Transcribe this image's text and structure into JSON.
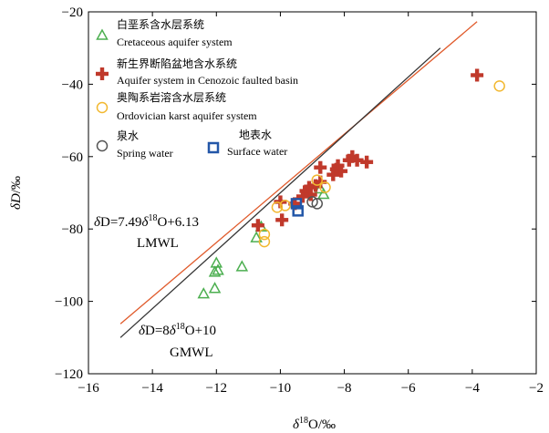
{
  "chart_data": {
    "type": "scatter",
    "xlabel": "δ18O/‰",
    "ylabel": "δD/‰",
    "xlim": [
      -16,
      -2
    ],
    "ylim": [
      -120,
      -20
    ],
    "xticks": [
      -16,
      -14,
      -12,
      -10,
      -8,
      -6,
      -4,
      -2
    ],
    "yticks": [
      -120,
      -100,
      -80,
      -60,
      -40,
      -20
    ],
    "xtick_labels": [
      "−16",
      "−14",
      "−12",
      "−10",
      "−8",
      "−6",
      "−4",
      "−2"
    ],
    "ytick_labels": [
      "−120",
      "−100",
      "−80",
      "−60",
      "−40",
      "−20"
    ],
    "grid": false,
    "legend_position": "top-left",
    "series": [
      {
        "name_cn": "白垩系含水层系统",
        "name": "Cretaceous aquifer system",
        "marker": "triangle",
        "color": "#4caf50",
        "points": [
          {
            "x": -12.4,
            "y": -98
          },
          {
            "x": -12.05,
            "y": -96.5
          },
          {
            "x": -12.05,
            "y": -92
          },
          {
            "x": -11.95,
            "y": -91.5
          },
          {
            "x": -12.0,
            "y": -89.5
          },
          {
            "x": -11.2,
            "y": -90.5
          },
          {
            "x": -10.75,
            "y": -82.5
          },
          {
            "x": -10.6,
            "y": -79.5
          },
          {
            "x": -8.65,
            "y": -70.5
          },
          {
            "x": -8.75,
            "y": -69
          }
        ]
      },
      {
        "name_cn": "新生界断陷盆地含水系统",
        "name": "Aquifer system in Cenozoic faulted basin",
        "marker": "plus",
        "color": "#c0392b",
        "points": [
          {
            "x": -10.7,
            "y": -79
          },
          {
            "x": -9.95,
            "y": -77.5
          },
          {
            "x": -10.0,
            "y": -72.5
          },
          {
            "x": -9.55,
            "y": -73
          },
          {
            "x": -9.3,
            "y": -71
          },
          {
            "x": -9.2,
            "y": -69.5
          },
          {
            "x": -9.1,
            "y": -68.5
          },
          {
            "x": -9.05,
            "y": -70.5
          },
          {
            "x": -8.9,
            "y": -68
          },
          {
            "x": -8.75,
            "y": -67
          },
          {
            "x": -8.75,
            "y": -63
          },
          {
            "x": -8.35,
            "y": -65
          },
          {
            "x": -8.25,
            "y": -63.5
          },
          {
            "x": -8.2,
            "y": -62.5
          },
          {
            "x": -8.1,
            "y": -64
          },
          {
            "x": -7.85,
            "y": -61
          },
          {
            "x": -7.75,
            "y": -60
          },
          {
            "x": -7.6,
            "y": -61
          },
          {
            "x": -7.3,
            "y": -61.5
          },
          {
            "x": -3.85,
            "y": -37.5
          }
        ]
      },
      {
        "name_cn": "奥陶系岩溶含水层系统",
        "name": "Ordovician karst aquifer system",
        "marker": "circle",
        "color": "#f2b830",
        "points": [
          {
            "x": -10.5,
            "y": -81.5
          },
          {
            "x": -10.5,
            "y": -83.5
          },
          {
            "x": -10.1,
            "y": -74
          },
          {
            "x": -9.85,
            "y": -73.5
          },
          {
            "x": -8.85,
            "y": -66.5
          },
          {
            "x": -8.6,
            "y": -68.5
          },
          {
            "x": -3.15,
            "y": -40.5
          }
        ]
      },
      {
        "name_cn": "泉水",
        "name": "Spring water",
        "marker": "circle",
        "color": "#555555",
        "points": [
          {
            "x": -9.0,
            "y": -72.5
          },
          {
            "x": -8.85,
            "y": -73
          }
        ]
      },
      {
        "name_cn": "地表水",
        "name": "Surface water",
        "marker": "square",
        "color": "#2357a8",
        "points": [
          {
            "x": -9.5,
            "y": -73
          },
          {
            "x": -9.45,
            "y": -75
          }
        ]
      }
    ],
    "lines": [
      {
        "name": "LMWL",
        "equation": "δD=7.49δ18O+6.13",
        "slope": 7.49,
        "intercept": 6.13,
        "x_range": [
          -15.0,
          -3.85
        ],
        "color": "#e05a2b"
      },
      {
        "name": "GMWL",
        "equation": "δD=8δ18O+10",
        "slope": 8,
        "intercept": 10,
        "x_range": [
          -15.0,
          -5.0
        ],
        "color": "#333333"
      }
    ],
    "annotations": [
      {
        "id": "lmwl",
        "parts": [
          "δD=7.49",
          "δ",
          "18",
          "O+6.13"
        ],
        "label": "LMWL"
      },
      {
        "id": "gmwl",
        "parts": [
          "δD=8",
          "δ",
          "18",
          "O+10"
        ],
        "label": "GMWL"
      }
    ]
  }
}
